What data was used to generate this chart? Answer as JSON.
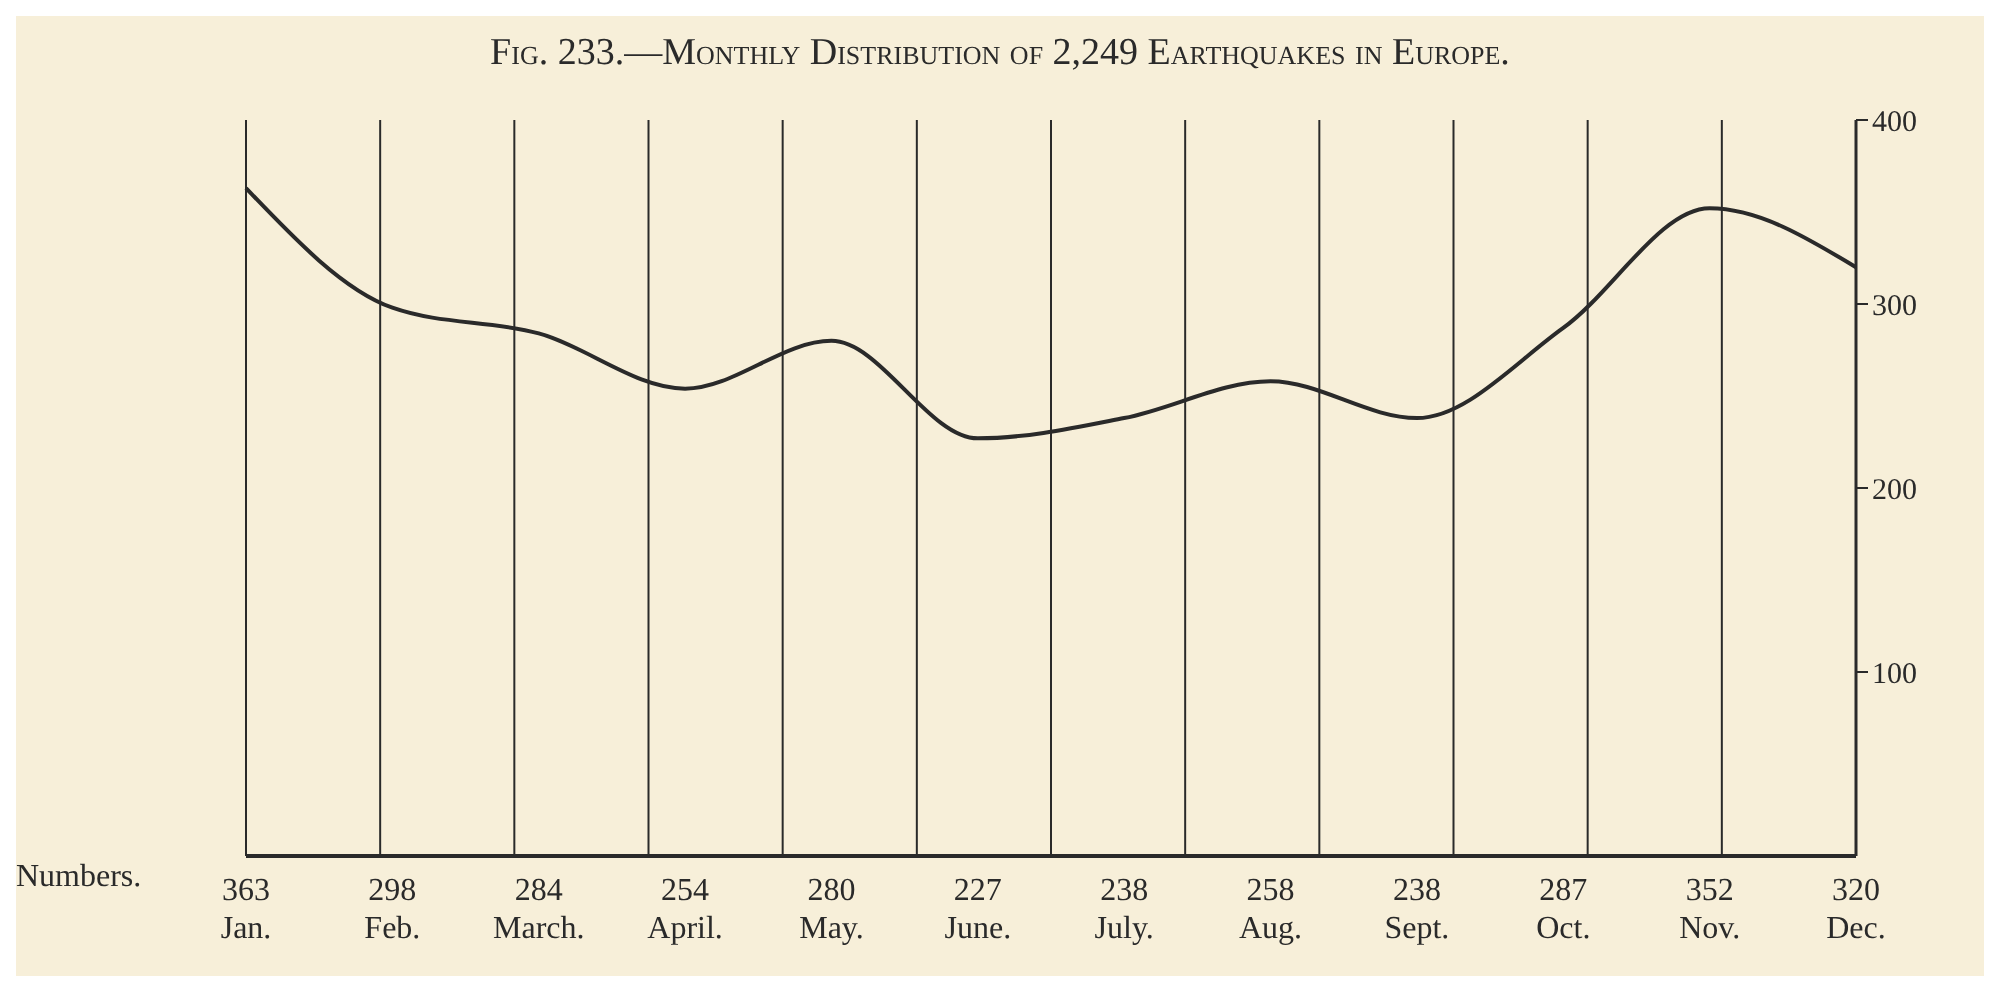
{
  "chart_data": {
    "type": "line",
    "title": "Fig. 233.—Monthly Distribution of 2,249 Earthquakes in Europe.",
    "categories": [
      "Jan.",
      "Feb.",
      "March.",
      "April.",
      "May.",
      "June.",
      "July.",
      "Aug.",
      "Sept.",
      "Oct.",
      "Nov.",
      "Dec."
    ],
    "series": [
      {
        "color": "#2a2a2a",
        "values": [
          363,
          298,
          284,
          254,
          280,
          227,
          238,
          258,
          238,
          287,
          352,
          320
        ]
      }
    ],
    "data_labels": true,
    "annotations": [
      "Numbers."
    ],
    "ylim": [
      0,
      400
    ],
    "yticks": [
      100,
      200,
      300,
      400
    ],
    "grid": "x",
    "marker": "none",
    "line_style": "solid"
  }
}
